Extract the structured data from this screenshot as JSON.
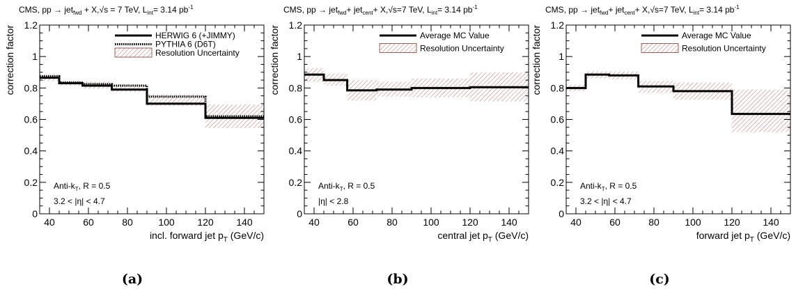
{
  "chart_data": [
    {
      "type": "line",
      "panel_label": "(a)",
      "title_text": "CMS, pp → jet_fwd + X, √s = 7 TeV, L_int = 3.14 pb⁻¹",
      "title_parts": {
        "lead": "CMS, pp → jet",
        "sub1": "fwd",
        "mid1": " + X,",
        "sqrt_s": "√s = 7 TeV, L",
        "sub_int": "int",
        "lumi": "= 3.14 pb",
        "lumi_exp": "-1"
      },
      "xlabel": "incl. forward jet p",
      "xlabel_sub": "T",
      "xlabel_unit": "(GeV/c)",
      "ylabel": "correction factor",
      "xlim": [
        35,
        150
      ],
      "ylim": [
        0,
        1.2
      ],
      "xticks": [
        "40",
        "60",
        "80",
        "100",
        "120",
        "140"
      ],
      "yticks": [
        "0",
        "0.2",
        "0.4",
        "0.6",
        "0.8",
        "1",
        "1.2"
      ],
      "bin_edges": [
        35,
        45,
        57,
        72,
        90,
        120,
        150
      ],
      "series": [
        {
          "name": "HERWIG 6 (+JIMMY)",
          "style": "solid",
          "values": [
            0.865,
            0.83,
            0.815,
            0.79,
            0.7,
            0.61
          ]
        },
        {
          "name": "PYTHIA 6 (D6T)",
          "style": "dotted",
          "values": [
            0.875,
            0.835,
            0.825,
            0.815,
            0.745,
            0.62
          ]
        }
      ],
      "band": {
        "name": "Resolution Uncertainty",
        "low": [
          0.845,
          0.815,
          0.795,
          0.775,
          0.685,
          0.545
        ],
        "high": [
          0.885,
          0.845,
          0.84,
          0.825,
          0.76,
          0.695
        ]
      },
      "legend": [
        "HERWIG 6 (+JIMMY)",
        "PYTHIA 6 (D6T)",
        "Resolution Uncertainty"
      ],
      "annotations": {
        "algo": "Anti-k",
        "algo_sub": "T",
        "algo_rest": ", R = 0.5",
        "eta_cut": "3.2 < |η| < 4.7"
      }
    },
    {
      "type": "line",
      "panel_label": "(b)",
      "title_parts": {
        "lead": "CMS, pp → jet",
        "sub1": "fwd",
        "mid1": "+ jet",
        "sub2": "cent",
        "mid2": "+ X,",
        "sqrt_s": "√s=7 TeV, L",
        "sub_int": "int",
        "lumi": "= 3.14 pb",
        "lumi_exp": "-1"
      },
      "xlabel": "central jet p",
      "xlabel_sub": "T",
      "xlabel_unit": "(GeV/c)",
      "ylabel": "correction factor",
      "xlim": [
        35,
        150
      ],
      "ylim": [
        0,
        1.2
      ],
      "xticks": [
        "40",
        "60",
        "80",
        "100",
        "120",
        "140"
      ],
      "yticks": [
        "0",
        "0.2",
        "0.4",
        "0.6",
        "0.8",
        "1",
        "1.2"
      ],
      "bin_edges": [
        35,
        45,
        57,
        72,
        90,
        120,
        150
      ],
      "series": [
        {
          "name": "Average MC Value",
          "style": "solid",
          "values": [
            0.885,
            0.85,
            0.785,
            0.79,
            0.8,
            0.805
          ]
        }
      ],
      "band": {
        "name": "Resolution Uncertainty",
        "low": [
          0.84,
          0.815,
          0.72,
          0.745,
          0.74,
          0.715
        ],
        "high": [
          0.925,
          0.89,
          0.85,
          0.84,
          0.86,
          0.9
        ]
      },
      "legend": [
        "Average MC Value",
        "Resolution Uncertainty"
      ],
      "annotations": {
        "algo": "Anti-k",
        "algo_sub": "T",
        "algo_rest": ", R = 0.5",
        "eta_cut": "|η| < 2.8"
      }
    },
    {
      "type": "line",
      "panel_label": "(c)",
      "title_parts": {
        "lead": "CMS, pp → jet",
        "sub1": "fwd",
        "mid1": "+ jet",
        "sub2": "cent",
        "mid2": "+ X,",
        "sqrt_s": "√s=7 TeV, L",
        "sub_int": "int",
        "lumi": "= 3.14 pb",
        "lumi_exp": "-1"
      },
      "xlabel": "forward jet p",
      "xlabel_sub": "T",
      "xlabel_unit": "(GeV/c)",
      "ylabel": "correction factor",
      "xlim": [
        35,
        150
      ],
      "ylim": [
        0,
        1.2
      ],
      "xticks": [
        "40",
        "60",
        "80",
        "100",
        "120",
        "140"
      ],
      "yticks": [
        "0",
        "0.2",
        "0.4",
        "0.6",
        "0.8",
        "1",
        "1.2"
      ],
      "bin_edges": [
        35,
        45,
        57,
        72,
        90,
        120,
        150
      ],
      "series": [
        {
          "name": "Average MC Value",
          "style": "solid",
          "values": [
            0.8,
            0.885,
            0.88,
            0.81,
            0.78,
            0.635
          ]
        },
        {
          "name": "Average MC Value",
          "style": "solid",
          "values": []
        }
      ],
      "band": {
        "name": "Resolution Uncertainty",
        "low": [
          0.78,
          0.86,
          0.855,
          0.77,
          0.725,
          0.52
        ],
        "high": [
          0.82,
          0.905,
          0.905,
          0.845,
          0.835,
          0.79
        ]
      },
      "legend": [
        "Average MC Value",
        "Resolution Uncertainty"
      ],
      "annotations": {
        "algo": "Anti-k",
        "algo_sub": "T",
        "algo_rest": ", R = 0.5",
        "eta_cut": "3.2 < |η| < 4.7"
      }
    }
  ],
  "colors": {
    "band": "#b5625a",
    "axis": "#000000"
  }
}
